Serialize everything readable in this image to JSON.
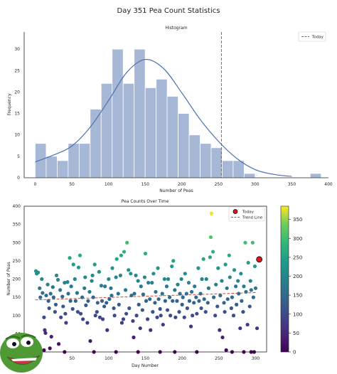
{
  "figure": {
    "suptitle": "Day 351 Pea Count Statistics"
  },
  "colors": {
    "hist_fill": "#a7b7d6",
    "hist_edge": "#ffffff",
    "kde": "#4c72b0",
    "today_line": "#d04a3a",
    "trend_line": "#d04a3a",
    "today_marker_fill": "#d8191c",
    "today_marker_edge": "#000000",
    "axes": "#222222",
    "pepe_green": "#4f9a34",
    "pepe_mouth": "#c9344b"
  },
  "decoration": {
    "corner_image_icon": "pepe-frog-sticker-icon"
  },
  "chart_data": [
    {
      "type": "bar",
      "subtype": "histogram",
      "title": "Histogram",
      "xlabel": "Number of Peas",
      "ylabel": "Frequency",
      "xlim": [
        -15,
        400
      ],
      "ylim": [
        0,
        34
      ],
      "xticks": [
        0,
        50,
        100,
        150,
        200,
        250,
        300,
        350,
        400
      ],
      "yticks": [
        0,
        5,
        10,
        15,
        20,
        25,
        30
      ],
      "bin_width": 15,
      "bin_start": 0,
      "counts": [
        8,
        5,
        4,
        8,
        8,
        16,
        22,
        30,
        22,
        30,
        21,
        23,
        19,
        15,
        10,
        8,
        7,
        4,
        4,
        1,
        0,
        0,
        0,
        0,
        0,
        1
      ],
      "kde": {
        "x": [
          0,
          25,
          50,
          75,
          100,
          125,
          150,
          175,
          200,
          225,
          250,
          275,
          300,
          325,
          350
        ],
        "y": [
          3.7,
          5.3,
          7.4,
          11.8,
          18.0,
          24.6,
          27.6,
          25.5,
          19.8,
          13.6,
          8.5,
          4.5,
          1.9,
          0.8,
          0.3
        ]
      },
      "today_line_x": 254,
      "legend": {
        "position": "top-right",
        "entries": [
          {
            "label": "Today",
            "style": "dashed"
          }
        ]
      },
      "grid": false
    },
    {
      "type": "scatter",
      "title": "Pea Counts Over Time",
      "xlabel": "Day Number",
      "ylabel": "Number of Peas",
      "xlim": [
        -15,
        315
      ],
      "ylim": [
        0,
        400
      ],
      "xticks": [
        50,
        100,
        150,
        200,
        250,
        300
      ],
      "yticks": [
        0,
        50,
        100,
        150,
        200,
        250,
        300,
        350,
        400
      ],
      "colorbar": {
        "min": 0,
        "max": 385,
        "ticks": [
          0,
          50,
          100,
          150,
          200,
          250,
          300,
          350
        ]
      },
      "points": [
        [
          1,
          222
        ],
        [
          2,
          215
        ],
        [
          4,
          218
        ],
        [
          6,
          175
        ],
        [
          7,
          150
        ],
        [
          9,
          200
        ],
        [
          10,
          162
        ],
        [
          12,
          95
        ],
        [
          13,
          60
        ],
        [
          14,
          52
        ],
        [
          15,
          155
        ],
        [
          17,
          185
        ],
        [
          18,
          140
        ],
        [
          19,
          120
        ],
        [
          21,
          160
        ],
        [
          22,
          42
        ],
        [
          24,
          178
        ],
        [
          25,
          150
        ],
        [
          27,
          110
        ],
        [
          28,
          130
        ],
        [
          29,
          210
        ],
        [
          31,
          198
        ],
        [
          32,
          22
        ],
        [
          34,
          170
        ],
        [
          35,
          95
        ],
        [
          37,
          152
        ],
        [
          38,
          125
        ],
        [
          40,
          190
        ],
        [
          41,
          105
        ],
        [
          42,
          80
        ],
        [
          44,
          192
        ],
        [
          45,
          160
        ],
        [
          47,
          258
        ],
        [
          48,
          140
        ],
        [
          49,
          180
        ],
        [
          51,
          118
        ],
        [
          52,
          240
        ],
        [
          54,
          200
        ],
        [
          55,
          140
        ],
        [
          57,
          162
        ],
        [
          58,
          110
        ],
        [
          59,
          232
        ],
        [
          61,
          265
        ],
        [
          62,
          105
        ],
        [
          64,
          150
        ],
        [
          65,
          90
        ],
        [
          67,
          175
        ],
        [
          68,
          205
        ],
        [
          69,
          128
        ],
        [
          71,
          80
        ],
        [
          72,
          140
        ],
        [
          74,
          165
        ],
        [
          75,
          30
        ],
        [
          77,
          195
        ],
        [
          78,
          210
        ],
        [
          79,
          150
        ],
        [
          81,
          240
        ],
        [
          82,
          100
        ],
        [
          84,
          110
        ],
        [
          85,
          135
        ],
        [
          87,
          220
        ],
        [
          88,
          95
        ],
        [
          90,
          182
        ],
        [
          91,
          140
        ],
        [
          92,
          90
        ],
        [
          94,
          125
        ],
        [
          95,
          180
        ],
        [
          97,
          135
        ],
        [
          98,
          60
        ],
        [
          100,
          200
        ],
        [
          101,
          145
        ],
        [
          103,
          175
        ],
        [
          104,
          155
        ],
        [
          105,
          230
        ],
        [
          107,
          120
        ],
        [
          108,
          100
        ],
        [
          110,
          205
        ],
        [
          111,
          255
        ],
        [
          113,
          160
        ],
        [
          114,
          130
        ],
        [
          116,
          210
        ],
        [
          117,
          265
        ],
        [
          118,
          80
        ],
        [
          120,
          90
        ],
        [
          121,
          275
        ],
        [
          123,
          170
        ],
        [
          124,
          105
        ],
        [
          125,
          300
        ],
        [
          127,
          225
        ],
        [
          128,
          120
        ],
        [
          130,
          215
        ],
        [
          131,
          155
        ],
        [
          133,
          85
        ],
        [
          134,
          40
        ],
        [
          135,
          160
        ],
        [
          137,
          210
        ],
        [
          138,
          100
        ],
        [
          140,
          195
        ],
        [
          141,
          130
        ],
        [
          143,
          65
        ],
        [
          144,
          180
        ],
        [
          146,
          115
        ],
        [
          147,
          158
        ],
        [
          149,
          205
        ],
        [
          150,
          270
        ],
        [
          151,
          140
        ],
        [
          153,
          90
        ],
        [
          154,
          190
        ],
        [
          156,
          145
        ],
        [
          157,
          60
        ],
        [
          159,
          190
        ],
        [
          160,
          110
        ],
        [
          161,
          215
        ],
        [
          163,
          135
        ],
        [
          164,
          165
        ],
        [
          166,
          95
        ],
        [
          167,
          230
        ],
        [
          168,
          145
        ],
        [
          170,
          118
        ],
        [
          171,
          100
        ],
        [
          173,
          160
        ],
        [
          174,
          75
        ],
        [
          176,
          200
        ],
        [
          177,
          140
        ],
        [
          179,
          180
        ],
        [
          180,
          115
        ],
        [
          181,
          200
        ],
        [
          183,
          150
        ],
        [
          184,
          100
        ],
        [
          186,
          235
        ],
        [
          187,
          140
        ],
        [
          188,
          250
        ],
        [
          190,
          170
        ],
        [
          191,
          95
        ],
        [
          193,
          140
        ],
        [
          194,
          185
        ],
        [
          196,
          110
        ],
        [
          197,
          160
        ],
        [
          199,
          200
        ],
        [
          200,
          130
        ],
        [
          201,
          150
        ],
        [
          203,
          95
        ],
        [
          204,
          215
        ],
        [
          206,
          160
        ],
        [
          207,
          120
        ],
        [
          209,
          190
        ],
        [
          210,
          140
        ],
        [
          212,
          70
        ],
        [
          213,
          165
        ],
        [
          214,
          100
        ],
        [
          216,
          135
        ],
        [
          217,
          180
        ],
        [
          219,
          150
        ],
        [
          220,
          105
        ],
        [
          222,
          230
        ],
        [
          223,
          140
        ],
        [
          225,
          160
        ],
        [
          226,
          120
        ],
        [
          227,
          200
        ],
        [
          229,
          255
        ],
        [
          230,
          145
        ],
        [
          232,
          110
        ],
        [
          233,
          200
        ],
        [
          235,
          135
        ],
        [
          236,
          175
        ],
        [
          238,
          260
        ],
        [
          239,
          315
        ],
        [
          240,
          380
        ],
        [
          242,
          275
        ],
        [
          243,
          150
        ],
        [
          245,
          100
        ],
        [
          246,
          185
        ],
        [
          248,
          125
        ],
        [
          249,
          230
        ],
        [
          251,
          60
        ],
        [
          252,
          155
        ],
        [
          254,
          195
        ],
        [
          255,
          40
        ],
        [
          257,
          135
        ],
        [
          258,
          110
        ],
        [
          259,
          240
        ],
        [
          261,
          175
        ],
        [
          262,
          145
        ],
        [
          264,
          265
        ],
        [
          265,
          205
        ],
        [
          267,
          120
        ],
        [
          268,
          150
        ],
        [
          270,
          100
        ],
        [
          271,
          225
        ],
        [
          273,
          180
        ],
        [
          274,
          130
        ],
        [
          276,
          195
        ],
        [
          277,
          160
        ],
        [
          279,
          65
        ],
        [
          280,
          215
        ],
        [
          281,
          140
        ],
        [
          283,
          110
        ],
        [
          284,
          180
        ],
        [
          286,
          300
        ],
        [
          287,
          165
        ],
        [
          289,
          75
        ],
        [
          290,
          245
        ],
        [
          292,
          125
        ],
        [
          293,
          195
        ],
        [
          294,
          170
        ],
        [
          296,
          300
        ],
        [
          297,
          150
        ],
        [
          299,
          235
        ],
        [
          300,
          175
        ],
        [
          302,
          65
        ],
        [
          12,
          5
        ],
        [
          20,
          10
        ],
        [
          40,
          0
        ],
        [
          80,
          0
        ],
        [
          110,
          0
        ],
        [
          140,
          0
        ],
        [
          170,
          0
        ],
        [
          190,
          0
        ],
        [
          220,
          0
        ],
        [
          260,
          5
        ],
        [
          268,
          0
        ],
        [
          284,
          0
        ],
        [
          294,
          0
        ],
        [
          298,
          0
        ]
      ],
      "trend": {
        "x0": 0,
        "y0": 143,
        "x1": 302,
        "y1": 163
      },
      "today_point": {
        "x": 305,
        "y": 254
      },
      "legend": {
        "position": "top-right",
        "entries": [
          {
            "label": "Today",
            "style": "marker"
          },
          {
            "label": "Trend Line",
            "style": "dashed"
          }
        ]
      },
      "grid": false
    }
  ]
}
